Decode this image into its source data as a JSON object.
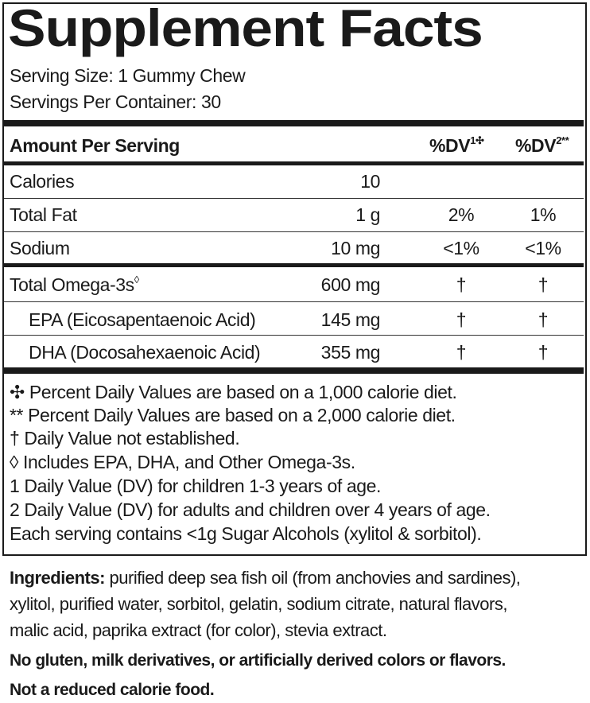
{
  "title": "Supplement Facts",
  "serving_size": "Serving Size: 1 Gummy Chew",
  "servings_per_container": "Servings Per Container: 30",
  "header": {
    "amount": "Amount Per Serving",
    "dv1": "%DV",
    "dv1_sup": "1✣",
    "dv2": "%DV",
    "dv2_sup": "2**"
  },
  "rows": [
    {
      "name": "Calories",
      "amount": "10",
      "dv1": "",
      "dv2": ""
    },
    {
      "name": "Total Fat",
      "amount": "1 g",
      "dv1": "2%",
      "dv2": "1%"
    },
    {
      "name": "Sodium",
      "amount": "10 mg",
      "dv1": "<1%",
      "dv2": "<1%"
    },
    {
      "name": "Total Omega-3s",
      "name_sup": "◊",
      "amount": "600 mg",
      "dv1": "†",
      "dv2": "†"
    },
    {
      "name": "EPA (Eicosapentaenoic Acid)",
      "amount": "145 mg",
      "dv1": "†",
      "dv2": "†"
    },
    {
      "name": "DHA (Docosahexaenoic Acid)",
      "amount": "355 mg",
      "dv1": "†",
      "dv2": "†"
    }
  ],
  "footnotes": [
    "✣ Percent Daily Values are based on a 1,000 calorie diet.",
    "** Percent Daily Values are based on a 2,000 calorie diet.",
    "† Daily Value not established.",
    "◊ Includes EPA, DHA, and Other Omega-3s.",
    "1 Daily Value (DV) for children 1-3 years of age.",
    "2 Daily Value (DV) for adults and children over 4 years of age.",
    "Each serving contains <1g Sugar Alcohols (xylitol & sorbitol)."
  ],
  "ingredients": {
    "label": "Ingredients:",
    "line1": " purified deep sea fish oil (from anchovies and sardines),",
    "line2": "xylitol, purified water, sorbitol, gelatin, sodium citrate, natural flavors,",
    "line3": "malic acid, paprika extract (for color), stevia extract."
  },
  "allergen_statement": "No gluten, milk derivatives, or artificially derived colors or flavors.",
  "calorie_statement": "Not a reduced calorie food."
}
